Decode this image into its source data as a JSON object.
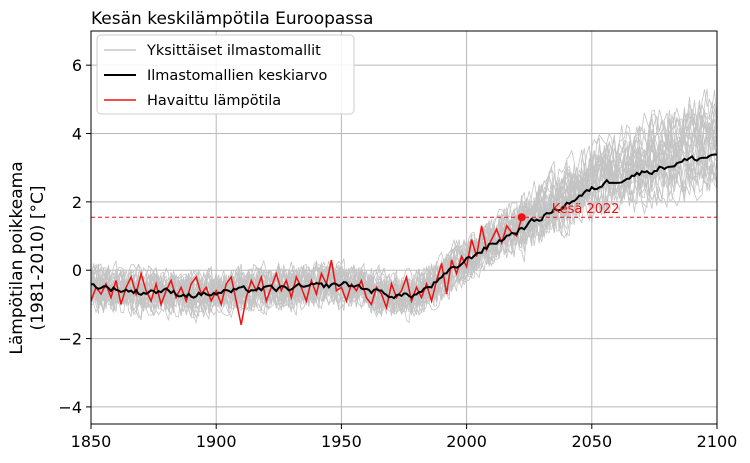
{
  "chart_data": {
    "type": "line",
    "title": "Kesän keskilämpötila Euroopassa",
    "ylabel_line1": "Lämpötilan poikkeama",
    "ylabel_line2": "(1981-2010) [°C]",
    "xlabel": "",
    "xlim": [
      1850,
      2100
    ],
    "ylim": [
      -4.5,
      7.0
    ],
    "xticks": [
      1850,
      1900,
      1950,
      2000,
      2050,
      2100
    ],
    "yticks": [
      -4,
      -2,
      0,
      2,
      4,
      6
    ],
    "xtick_labels": [
      "1850",
      "1900",
      "1950",
      "2000",
      "2050",
      "2100"
    ],
    "ytick_labels": [
      "−4",
      "−2",
      "0",
      "2",
      "4",
      "6"
    ],
    "grid": true,
    "legend_position": "top-left",
    "legend": [
      {
        "label": "Yksittäiset ilmastomallit",
        "color": "#bdbdbd"
      },
      {
        "label": "Ilmastomallien keskiarvo",
        "color": "#000000"
      },
      {
        "label": "Havaittu lämpötila",
        "color": "#ee1111"
      }
    ],
    "annotation": {
      "text": "Kesä 2022",
      "x": 2022,
      "y": 1.55,
      "color": "#ee1111"
    },
    "reference_line_y": 1.55,
    "series": [
      {
        "name": "Ilmastomallien keskiarvo",
        "color": "#000000",
        "x": [
          1850,
          1855,
          1860,
          1865,
          1870,
          1875,
          1880,
          1885,
          1890,
          1895,
          1900,
          1905,
          1910,
          1915,
          1920,
          1925,
          1930,
          1935,
          1940,
          1945,
          1950,
          1955,
          1960,
          1965,
          1970,
          1975,
          1980,
          1985,
          1990,
          1995,
          2000,
          2005,
          2010,
          2015,
          2020,
          2025,
          2030,
          2035,
          2040,
          2045,
          2050,
          2055,
          2060,
          2065,
          2070,
          2075,
          2080,
          2085,
          2090,
          2095,
          2100
        ],
        "values": [
          -0.45,
          -0.5,
          -0.55,
          -0.6,
          -0.65,
          -0.6,
          -0.62,
          -0.68,
          -0.72,
          -0.7,
          -0.68,
          -0.62,
          -0.6,
          -0.55,
          -0.55,
          -0.55,
          -0.52,
          -0.5,
          -0.48,
          -0.45,
          -0.4,
          -0.45,
          -0.55,
          -0.65,
          -0.72,
          -0.75,
          -0.7,
          -0.5,
          -0.25,
          0.05,
          0.3,
          0.55,
          0.75,
          0.95,
          1.15,
          1.35,
          1.55,
          1.75,
          1.95,
          2.15,
          2.35,
          2.55,
          2.65,
          2.75,
          2.85,
          2.95,
          3.05,
          3.15,
          3.25,
          3.3,
          3.4
        ]
      },
      {
        "name": "Havaittu lämpötila",
        "color": "#ee1111",
        "x": [
          1850,
          1852,
          1854,
          1856,
          1858,
          1860,
          1862,
          1864,
          1866,
          1868,
          1870,
          1872,
          1874,
          1876,
          1878,
          1880,
          1882,
          1884,
          1886,
          1888,
          1890,
          1892,
          1894,
          1896,
          1898,
          1900,
          1902,
          1904,
          1906,
          1908,
          1910,
          1912,
          1914,
          1916,
          1918,
          1920,
          1922,
          1924,
          1926,
          1928,
          1930,
          1932,
          1934,
          1936,
          1938,
          1940,
          1942,
          1944,
          1946,
          1948,
          1950,
          1952,
          1954,
          1956,
          1958,
          1960,
          1962,
          1964,
          1966,
          1968,
          1970,
          1972,
          1974,
          1976,
          1978,
          1980,
          1982,
          1984,
          1986,
          1988,
          1990,
          1992,
          1994,
          1996,
          1998,
          2000,
          2002,
          2004,
          2006,
          2008,
          2010,
          2012,
          2014,
          2016,
          2018,
          2020,
          2022
        ],
        "values": [
          -0.9,
          -0.5,
          -0.7,
          -0.4,
          -0.8,
          -0.3,
          -1.0,
          -0.5,
          -0.2,
          -0.7,
          -0.1,
          -0.6,
          -0.9,
          -0.4,
          -1.0,
          -0.6,
          -0.3,
          -0.8,
          -0.5,
          -0.9,
          -0.4,
          -0.2,
          -0.7,
          -0.5,
          -0.9,
          -0.6,
          -1.0,
          -0.4,
          -0.2,
          -0.9,
          -1.6,
          -0.8,
          -0.3,
          -0.6,
          -0.2,
          -0.9,
          -0.5,
          -0.1,
          -0.6,
          -0.3,
          -0.8,
          -0.2,
          -0.5,
          -0.9,
          -0.3,
          -0.7,
          -0.1,
          -0.4,
          0.3,
          -0.6,
          -0.5,
          -0.9,
          -0.4,
          -0.6,
          -0.3,
          -0.8,
          -1.0,
          -0.5,
          -0.7,
          -1.1,
          -0.4,
          -0.8,
          -0.6,
          -0.2,
          -0.9,
          -0.5,
          -0.8,
          -0.4,
          -0.9,
          -0.3,
          0.2,
          -0.7,
          0.3,
          -0.1,
          0.4,
          0.1,
          0.9,
          0.4,
          1.3,
          0.6,
          0.9,
          1.2,
          0.8,
          1.3,
          1.1,
          1.0,
          1.55
        ]
      }
    ]
  }
}
